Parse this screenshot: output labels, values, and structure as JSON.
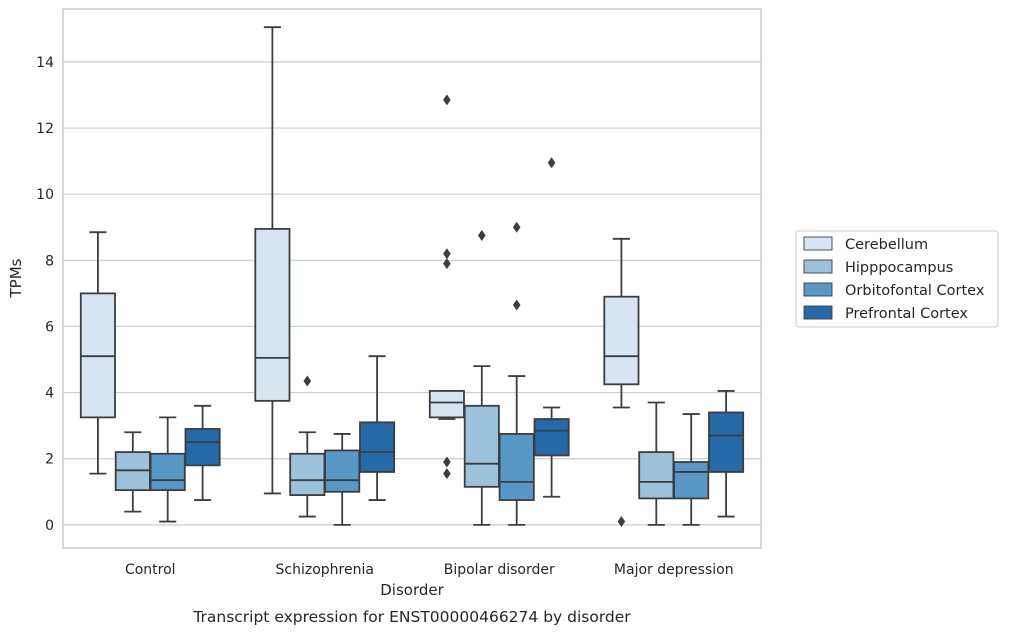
{
  "chart_data": {
    "type": "box",
    "caption": "Transcript expression for ENST00000466274 by disorder",
    "xlabel": "Disorder",
    "ylabel": "TPMs",
    "ylim": [
      -0.7,
      15.6
    ],
    "yticks": [
      0,
      2,
      4,
      6,
      8,
      10,
      12,
      14
    ],
    "grid": true,
    "legend_position": "right",
    "categories": [
      "Control",
      "Schizophrenia",
      "Bipolar disorder",
      "Major depression"
    ],
    "series": [
      {
        "name": "Cerebellum",
        "color": "#d7e5f3",
        "boxes": [
          {
            "whisker_low": 1.55,
            "q1": 3.25,
            "median": 5.1,
            "q3": 7.0,
            "whisker_high": 8.85,
            "outliers": []
          },
          {
            "whisker_low": 0.95,
            "q1": 3.75,
            "median": 5.05,
            "q3": 8.95,
            "whisker_high": 15.05,
            "outliers": []
          },
          {
            "whisker_low": 3.2,
            "q1": 3.25,
            "median": 3.7,
            "q3": 4.05,
            "whisker_high": 4.05,
            "outliers": [
              1.55,
              1.9,
              7.9,
              8.2,
              12.85
            ]
          },
          {
            "whisker_low": 3.55,
            "q1": 4.25,
            "median": 5.1,
            "q3": 6.9,
            "whisker_high": 8.65,
            "outliers": [
              0.1
            ]
          }
        ]
      },
      {
        "name": "Hipppocampus",
        "color": "#9dc2dc",
        "boxes": [
          {
            "whisker_low": 0.4,
            "q1": 1.05,
            "median": 1.65,
            "q3": 2.2,
            "whisker_high": 2.8,
            "outliers": []
          },
          {
            "whisker_low": 0.25,
            "q1": 0.9,
            "median": 1.35,
            "q3": 2.15,
            "whisker_high": 2.8,
            "outliers": [
              4.35
            ]
          },
          {
            "whisker_low": 0.0,
            "q1": 1.15,
            "median": 1.85,
            "q3": 3.6,
            "whisker_high": 4.8,
            "outliers": [
              8.75
            ]
          },
          {
            "whisker_low": 0.0,
            "q1": 0.8,
            "median": 1.3,
            "q3": 2.2,
            "whisker_high": 3.7,
            "outliers": []
          }
        ]
      },
      {
        "name": "Orbitofontal Cortex",
        "color": "#5898c6",
        "boxes": [
          {
            "whisker_low": 0.1,
            "q1": 1.05,
            "median": 1.35,
            "q3": 2.15,
            "whisker_high": 3.25,
            "outliers": []
          },
          {
            "whisker_low": 0.0,
            "q1": 1.0,
            "median": 1.35,
            "q3": 2.25,
            "whisker_high": 2.75,
            "outliers": []
          },
          {
            "whisker_low": 0.0,
            "q1": 0.75,
            "median": 1.3,
            "q3": 2.75,
            "whisker_high": 4.5,
            "outliers": [
              6.65,
              9.0
            ]
          },
          {
            "whisker_low": 0.0,
            "q1": 0.8,
            "median": 1.6,
            "q3": 1.9,
            "whisker_high": 3.35,
            "outliers": []
          }
        ]
      },
      {
        "name": "Prefrontal Cortex",
        "color": "#2469a8",
        "boxes": [
          {
            "whisker_low": 0.75,
            "q1": 1.8,
            "median": 2.5,
            "q3": 2.9,
            "whisker_high": 3.6,
            "outliers": []
          },
          {
            "whisker_low": 0.75,
            "q1": 1.6,
            "median": 2.2,
            "q3": 3.1,
            "whisker_high": 5.1,
            "outliers": []
          },
          {
            "whisker_low": 0.85,
            "q1": 2.1,
            "median": 2.85,
            "q3": 3.2,
            "whisker_high": 3.55,
            "outliers": [
              10.95
            ]
          },
          {
            "whisker_low": 0.25,
            "q1": 1.6,
            "median": 2.7,
            "q3": 3.4,
            "whisker_high": 4.05,
            "outliers": []
          }
        ]
      }
    ]
  }
}
